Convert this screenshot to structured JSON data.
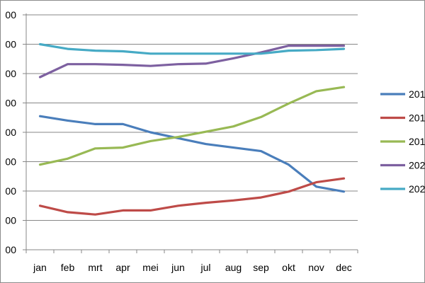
{
  "chart_data": {
    "type": "line",
    "categories": [
      "jan",
      "feb",
      "mrt",
      "apr",
      "mei",
      "jun",
      "jul",
      "aug",
      "sep",
      "okt",
      "nov",
      "dec"
    ],
    "y_tick_labels": [
      "00",
      "00",
      "00",
      "00",
      "00",
      "00",
      "00",
      "00",
      "00"
    ],
    "ylim": [
      0,
      8
    ],
    "grid": true,
    "legend_placement": "right",
    "series": [
      {
        "name": "201",
        "color": "#4a7ebb",
        "values": [
          4.55,
          4.4,
          4.28,
          4.28,
          4.0,
          3.8,
          3.6,
          3.48,
          3.36,
          2.9,
          2.15,
          1.98
        ]
      },
      {
        "name": "201",
        "color": "#be4b48",
        "values": [
          1.5,
          1.28,
          1.2,
          1.34,
          1.34,
          1.5,
          1.6,
          1.68,
          1.78,
          1.98,
          2.3,
          2.43
        ]
      },
      {
        "name": "201",
        "color": "#98b954",
        "values": [
          2.9,
          3.1,
          3.45,
          3.48,
          3.7,
          3.84,
          4.02,
          4.2,
          4.52,
          4.98,
          5.4,
          5.54
        ]
      },
      {
        "name": "202",
        "color": "#7d60a0",
        "values": [
          5.88,
          6.32,
          6.32,
          6.3,
          6.26,
          6.32,
          6.34,
          6.52,
          6.72,
          6.95,
          6.95,
          6.95
        ]
      },
      {
        "name": "202",
        "color": "#46aac5",
        "values": [
          7.0,
          6.84,
          6.78,
          6.76,
          6.68,
          6.68,
          6.68,
          6.68,
          6.68,
          6.78,
          6.8,
          6.84
        ]
      }
    ]
  }
}
